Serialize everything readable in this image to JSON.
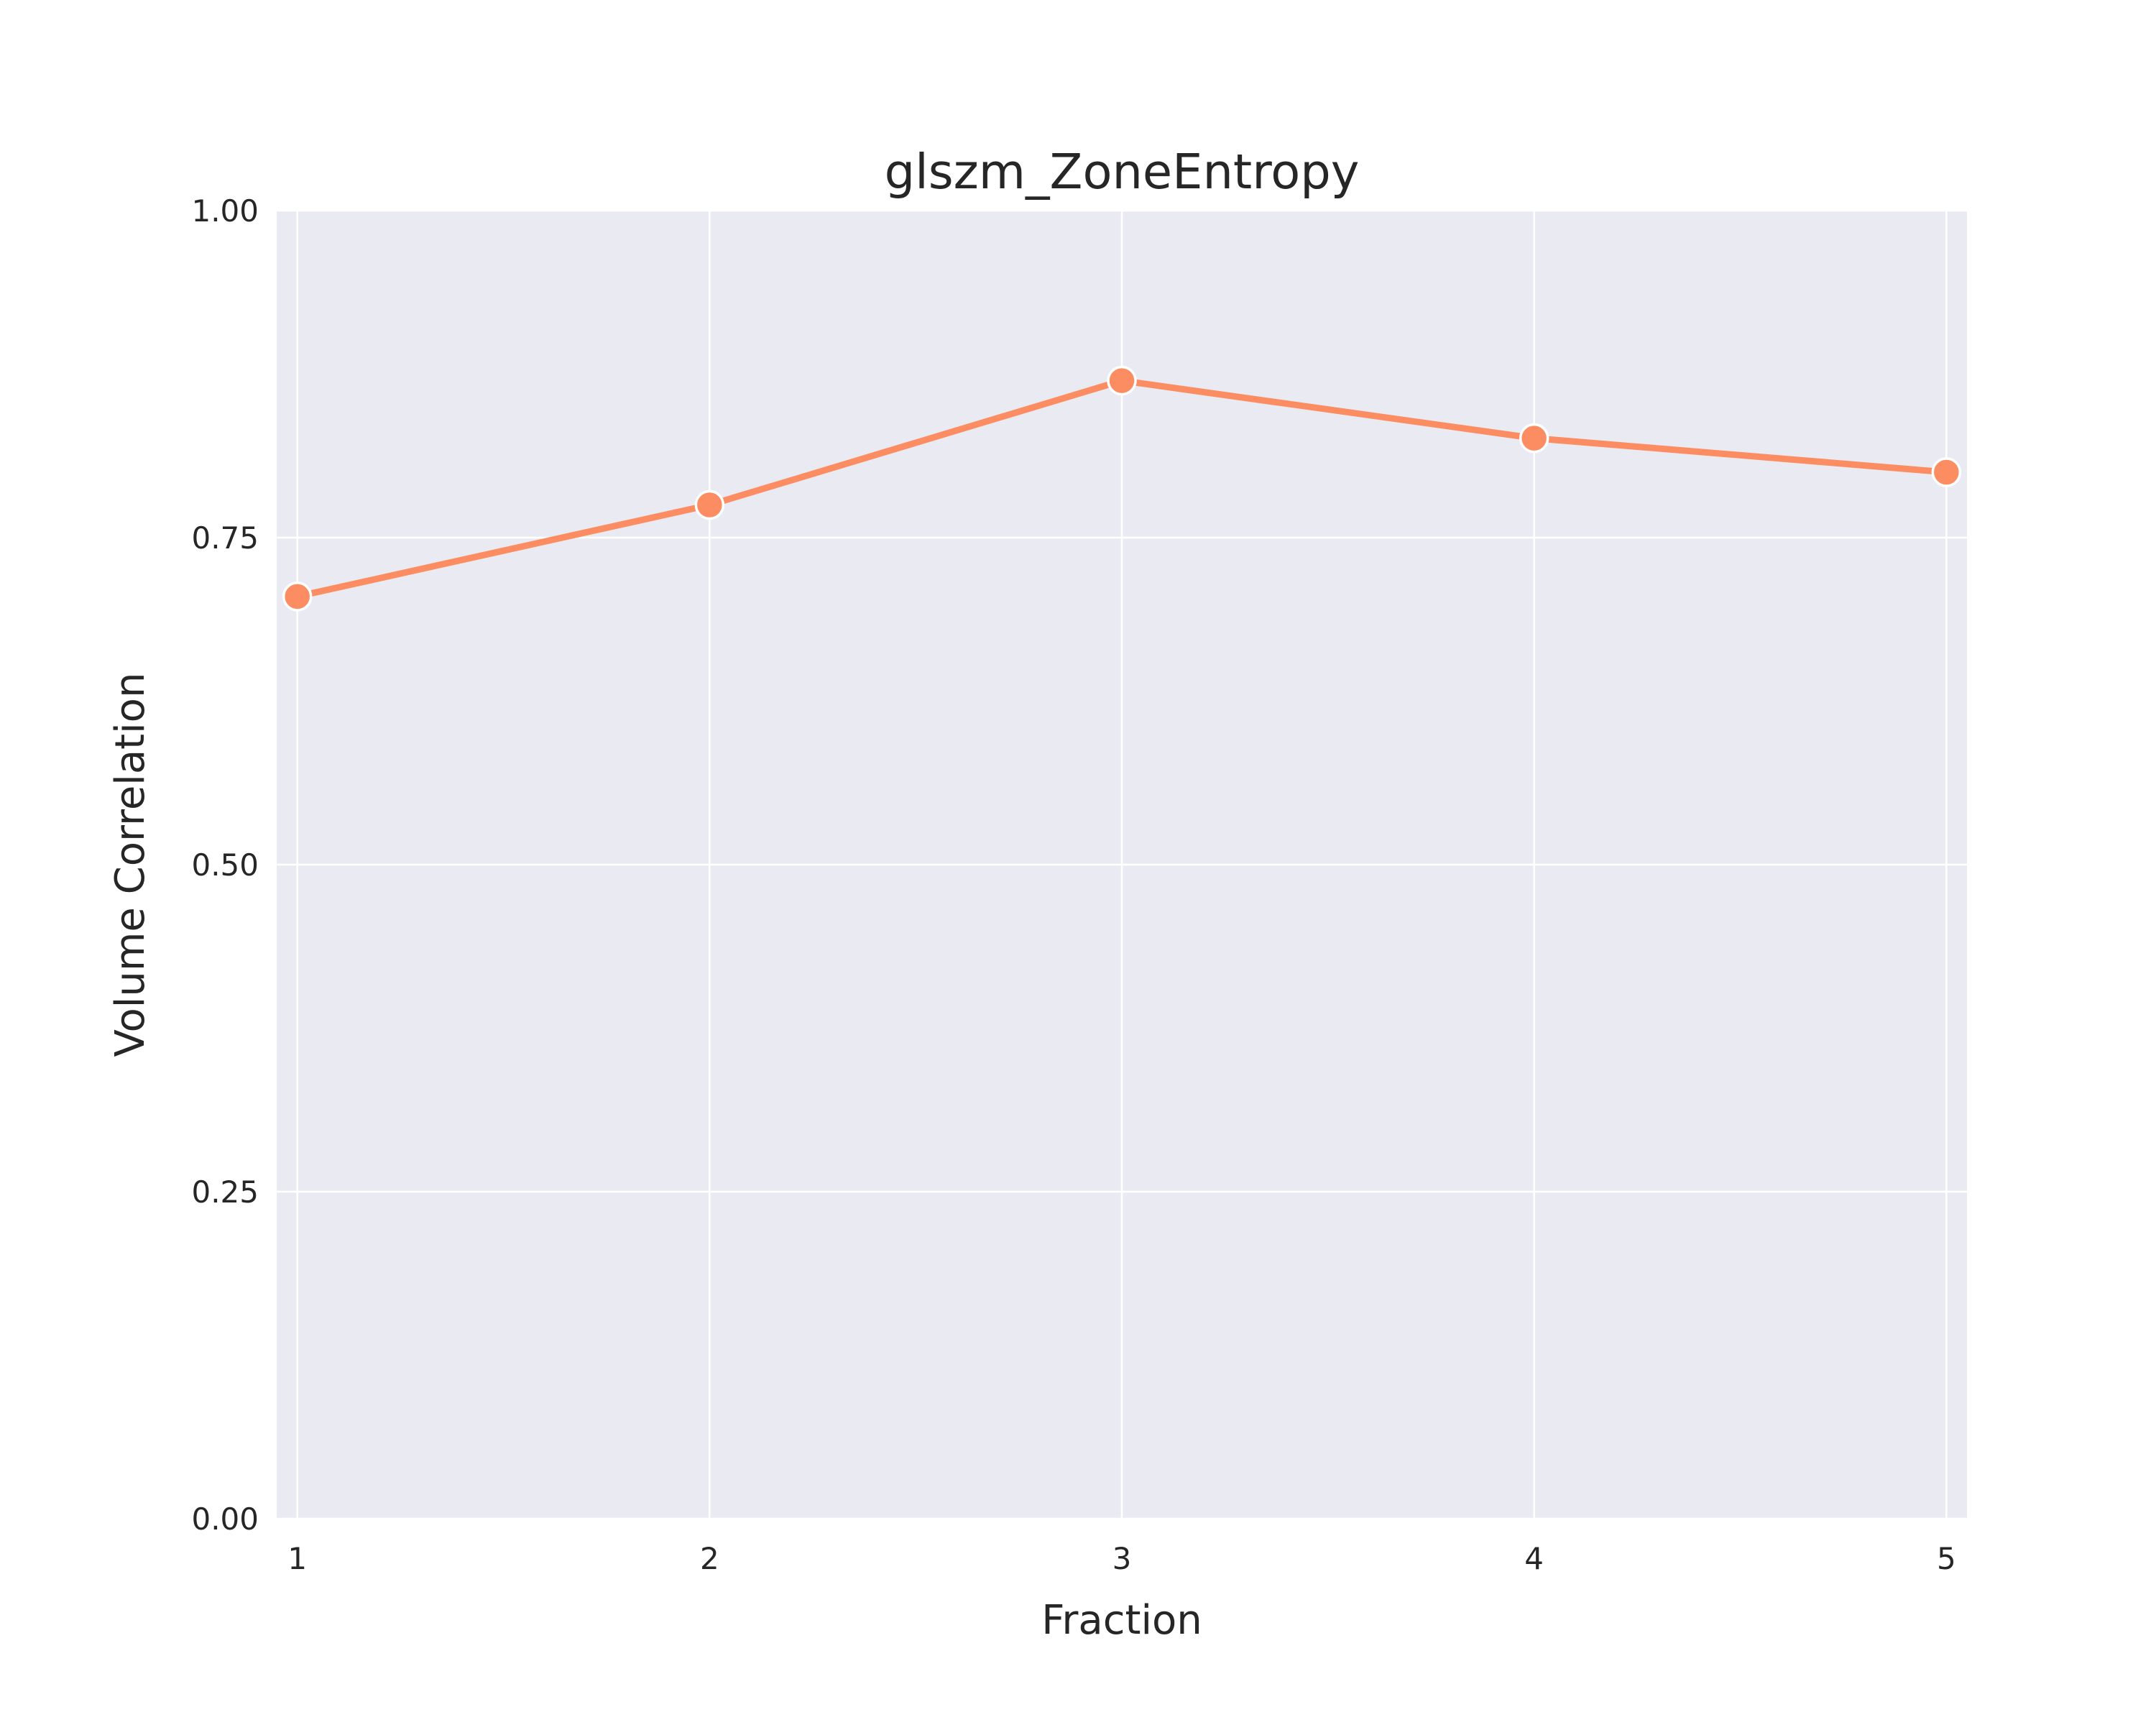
{
  "chart_data": {
    "type": "line",
    "title": "glszm_ZoneEntropy",
    "xlabel": "Fraction",
    "ylabel": "Volume Correlation",
    "x": [
      1,
      2,
      3,
      4,
      5
    ],
    "x_tick_labels": [
      "1",
      "2",
      "3",
      "4",
      "5"
    ],
    "xlim": [
      0.95,
      5.05
    ],
    "ylim": [
      0,
      1
    ],
    "y_ticks": [
      0,
      0.25,
      0.5,
      0.75,
      1.0
    ],
    "y_tick_labels": [
      "0.00",
      "0.25",
      "0.50",
      "0.75",
      "1.00"
    ],
    "grid": true,
    "legend": "none",
    "series": [
      {
        "values": [
          0.705,
          0.775,
          0.87,
          0.826,
          0.8
        ],
        "color": "#fc8d62"
      }
    ],
    "colors": {
      "background": "#eaeaf2",
      "grid": "#ffffff",
      "text": "#262626"
    }
  }
}
